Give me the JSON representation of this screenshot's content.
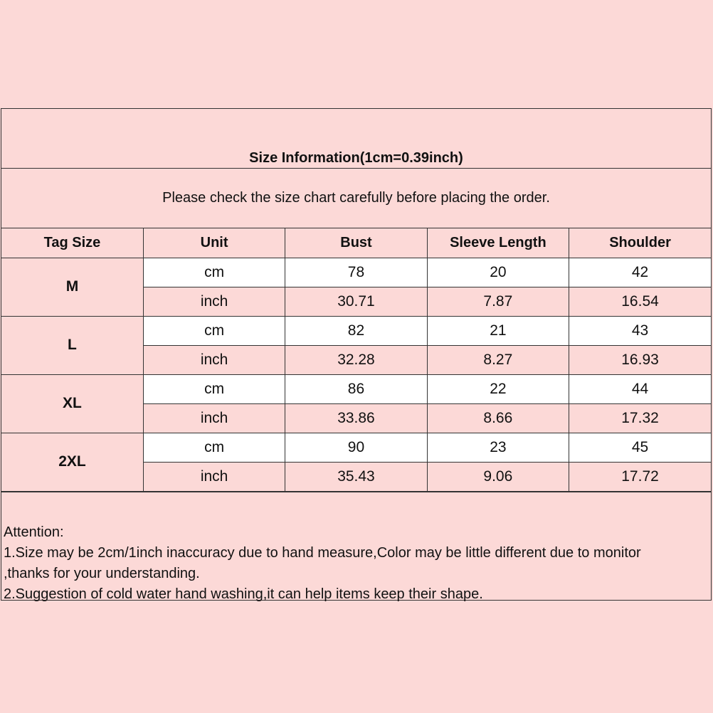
{
  "title": "Size Information(1cm=0.39inch)",
  "subtitle": "Please check the size chart carefully before placing the order.",
  "headers": [
    "Tag Size",
    "Unit",
    "Bust",
    "Sleeve Length",
    "Shoulder"
  ],
  "sizes": [
    {
      "tag": "M",
      "cm": {
        "unit": "cm",
        "bust": "78",
        "sleeve": "20",
        "shoulder": "42"
      },
      "inch": {
        "unit": "inch",
        "bust": "30.71",
        "sleeve": "7.87",
        "shoulder": "16.54"
      }
    },
    {
      "tag": "L",
      "cm": {
        "unit": "cm",
        "bust": "82",
        "sleeve": "21",
        "shoulder": "43"
      },
      "inch": {
        "unit": "inch",
        "bust": "32.28",
        "sleeve": "8.27",
        "shoulder": "16.93"
      }
    },
    {
      "tag": "XL",
      "cm": {
        "unit": "cm",
        "bust": "86",
        "sleeve": "22",
        "shoulder": "44"
      },
      "inch": {
        "unit": "inch",
        "bust": "33.86",
        "sleeve": "8.66",
        "shoulder": "17.32"
      }
    },
    {
      "tag": "2XL",
      "cm": {
        "unit": "cm",
        "bust": "90",
        "sleeve": "23",
        "shoulder": "45"
      },
      "inch": {
        "unit": "inch",
        "bust": "35.43",
        "sleeve": "9.06",
        "shoulder": "17.72"
      }
    }
  ],
  "attention": {
    "heading": "Attention:",
    "lines": [
      "1.Size may be 2cm/1inch inaccuracy due to hand measure,Color may be little different due to monitor",
      ",thanks for your understanding.",
      "2.Suggestion of cold water hand washing,it can help items keep their shape."
    ]
  },
  "colors": {
    "background": "#fcd9d7",
    "cm_row": "#ffffff",
    "border": "#333333"
  }
}
